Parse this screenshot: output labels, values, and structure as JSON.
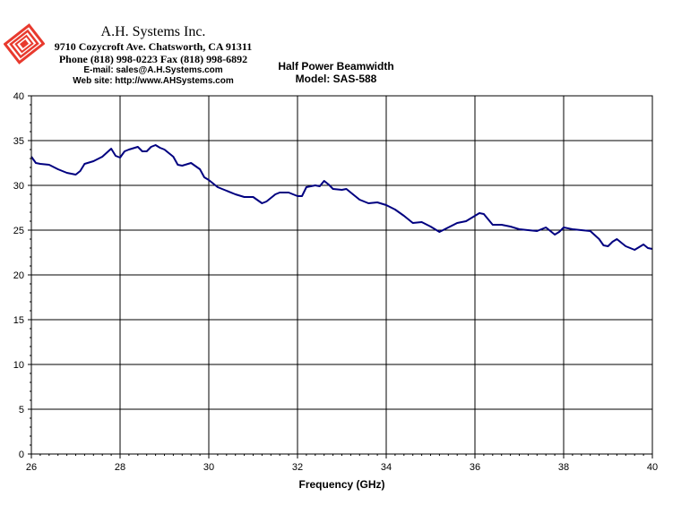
{
  "header": {
    "company_name": "A.H. Systems Inc.",
    "address": "9710 Cozycroft Ave. Chatsworth, CA 91311",
    "phone": "Phone (818) 998-0223 Fax (818) 998-6892",
    "email": "E-mail:  sales@A.H.Systems.com",
    "website": "Web site:  http://www.AHSystems.com",
    "logo_icon": "ah-systems-logo-icon",
    "logo_color": "#e83a2e"
  },
  "chart_data": {
    "type": "line",
    "title": "Half Power Beamwidth",
    "subtitle": "Model: SAS-588",
    "xlabel": "Frequency (GHz)",
    "ylabel": "",
    "xlim": [
      26,
      40
    ],
    "ylim": [
      0,
      40
    ],
    "xticks": [
      26,
      28,
      30,
      32,
      34,
      36,
      38,
      40
    ],
    "yticks": [
      0,
      5,
      10,
      15,
      20,
      25,
      30,
      35,
      40
    ],
    "grid": true,
    "legend": "none",
    "line_color": "#000080",
    "series": [
      {
        "x": [
          26.0,
          26.1,
          26.2,
          26.4,
          26.6,
          26.8,
          27.0,
          27.1,
          27.2,
          27.4,
          27.6,
          27.8,
          27.9,
          28.0,
          28.1,
          28.2,
          28.4,
          28.5,
          28.6,
          28.7,
          28.8,
          28.9,
          29.0,
          29.2,
          29.3,
          29.4,
          29.6,
          29.8,
          29.9,
          30.0,
          30.2,
          30.4,
          30.6,
          30.8,
          31.0,
          31.2,
          31.3,
          31.5,
          31.6,
          31.8,
          32.0,
          32.1,
          32.2,
          32.4,
          32.5,
          32.6,
          32.7,
          32.8,
          33.0,
          33.1,
          33.2,
          33.4,
          33.6,
          33.8,
          34.0,
          34.2,
          34.4,
          34.6,
          34.8,
          35.0,
          35.2,
          35.4,
          35.6,
          35.8,
          36.0,
          36.1,
          36.2,
          36.4,
          36.6,
          36.8,
          37.0,
          37.2,
          37.4,
          37.6,
          37.7,
          37.8,
          37.9,
          38.0,
          38.2,
          38.4,
          38.6,
          38.8,
          38.9,
          39.0,
          39.1,
          39.2,
          39.3,
          39.4,
          39.6,
          39.8,
          39.9,
          40.0
        ],
        "y": [
          33.2,
          32.5,
          32.4,
          32.3,
          31.8,
          31.4,
          31.2,
          31.6,
          32.4,
          32.7,
          33.2,
          34.1,
          33.3,
          33.1,
          33.8,
          34.0,
          34.3,
          33.8,
          33.8,
          34.3,
          34.5,
          34.2,
          34.0,
          33.2,
          32.3,
          32.2,
          32.5,
          31.8,
          30.9,
          30.6,
          29.8,
          29.4,
          29.0,
          28.7,
          28.7,
          28.0,
          28.2,
          29.0,
          29.2,
          29.2,
          28.8,
          28.8,
          29.8,
          30.0,
          29.9,
          30.5,
          30.1,
          29.6,
          29.5,
          29.6,
          29.2,
          28.4,
          28.0,
          28.1,
          27.8,
          27.3,
          26.6,
          25.8,
          25.9,
          25.4,
          24.8,
          25.3,
          25.8,
          26.0,
          26.6,
          26.9,
          26.8,
          25.6,
          25.6,
          25.4,
          25.1,
          25.0,
          24.9,
          25.3,
          24.9,
          24.5,
          24.8,
          25.3,
          25.1,
          25.0,
          24.9,
          24.0,
          23.3,
          23.2,
          23.7,
          24.0,
          23.6,
          23.2,
          22.8,
          23.4,
          23.0,
          22.9
        ]
      }
    ]
  }
}
